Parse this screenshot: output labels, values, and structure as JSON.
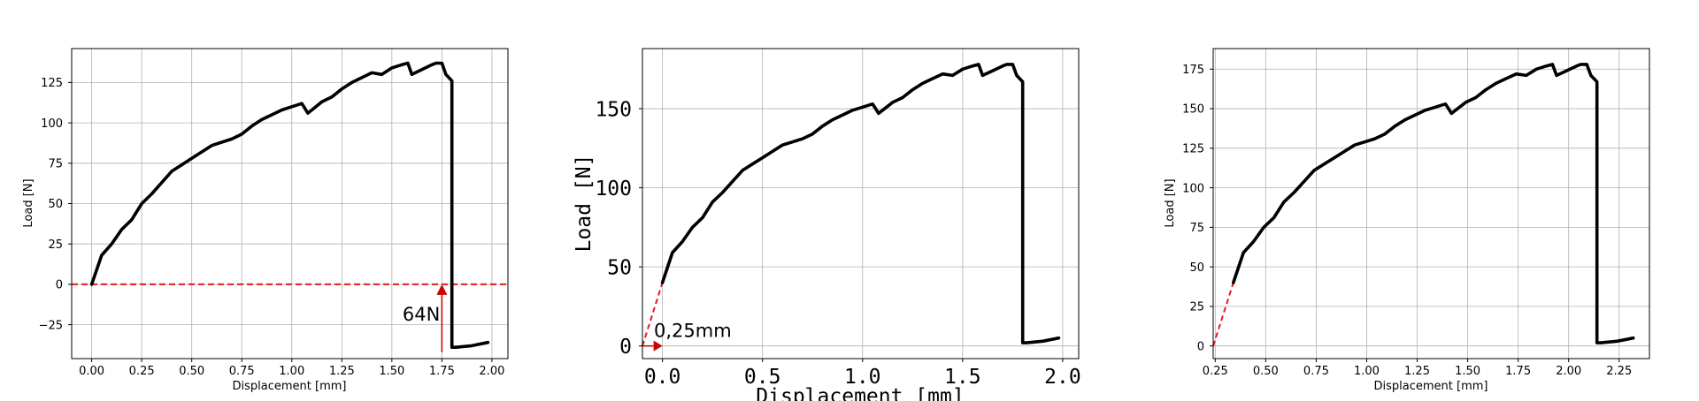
{
  "chart_data": [
    {
      "type": "line",
      "title": "",
      "xlabel": "Displacement [mm]",
      "ylabel": "Load [N]",
      "xlim": [
        -0.1,
        2.08
      ],
      "ylim": [
        -46,
        146
      ],
      "xticks": [
        "0.00",
        "0.25",
        "0.50",
        "0.75",
        "1.00",
        "1.25",
        "1.50",
        "1.75",
        "2.00"
      ],
      "yticks": [
        "−25",
        "0",
        "25",
        "50",
        "75",
        "100",
        "125"
      ],
      "grid": true,
      "series": [
        {
          "color": "#000000",
          "x": [
            0.0,
            0.05,
            0.1,
            0.15,
            0.2,
            0.25,
            0.3,
            0.35,
            0.4,
            0.45,
            0.5,
            0.55,
            0.6,
            0.65,
            0.7,
            0.75,
            0.8,
            0.85,
            0.9,
            0.95,
            1.0,
            1.05,
            1.08,
            1.1,
            1.15,
            1.2,
            1.25,
            1.3,
            1.35,
            1.4,
            1.45,
            1.5,
            1.55,
            1.58,
            1.6,
            1.65,
            1.7,
            1.72,
            1.75,
            1.77,
            1.8,
            1.8,
            1.82,
            1.9,
            1.98
          ],
          "y": [
            0,
            18,
            25,
            34,
            40,
            50,
            56,
            63,
            70,
            74,
            78,
            82,
            86,
            88,
            90,
            93,
            98,
            102,
            105,
            108,
            110,
            112,
            106,
            108,
            113,
            116,
            121,
            125,
            128,
            131,
            130,
            134,
            136,
            137,
            130,
            133,
            136,
            137,
            137,
            130,
            126,
            -39,
            -39,
            -38,
            -36
          ]
        }
      ],
      "reference_line": {
        "y": 0,
        "color": "#e41a1c",
        "style": "dashed"
      },
      "annotations": [
        {
          "text": "64N",
          "x": 1.75,
          "y_from": -42,
          "y_to": 0,
          "color": "#cc0000"
        }
      ]
    },
    {
      "type": "line",
      "title": "",
      "xlabel": "Displacement [mm]",
      "ylabel": "Load [N]",
      "xlim": [
        -0.1,
        2.08
      ],
      "ylim": [
        -8,
        188
      ],
      "xticks": [
        "0.0",
        "0.5",
        "1.0",
        "1.5",
        "2.0"
      ],
      "yticks": [
        "0",
        "50",
        "100",
        "150"
      ],
      "grid": true,
      "series": [
        {
          "color": "#000000",
          "x": [
            0.0,
            0.05,
            0.1,
            0.15,
            0.2,
            0.25,
            0.3,
            0.35,
            0.4,
            0.45,
            0.5,
            0.55,
            0.6,
            0.65,
            0.7,
            0.75,
            0.8,
            0.85,
            0.9,
            0.95,
            1.0,
            1.05,
            1.08,
            1.1,
            1.15,
            1.2,
            1.25,
            1.3,
            1.35,
            1.4,
            1.45,
            1.5,
            1.55,
            1.58,
            1.6,
            1.65,
            1.7,
            1.72,
            1.75,
            1.77,
            1.8,
            1.8,
            1.82,
            1.9,
            1.98
          ],
          "y": [
            40,
            59,
            66,
            75,
            81,
            91,
            97,
            104,
            111,
            115,
            119,
            123,
            127,
            129,
            131,
            134,
            139,
            143,
            146,
            149,
            151,
            153,
            147,
            149,
            154,
            157,
            162,
            166,
            169,
            172,
            171,
            175,
            177,
            178,
            171,
            174,
            177,
            178,
            178,
            171,
            167,
            2,
            2,
            3,
            5
          ]
        }
      ],
      "extrapolation": {
        "x": [
          -0.1,
          0.0
        ],
        "y": [
          0,
          40
        ],
        "color": "#e41a1c"
      },
      "annotations": [
        {
          "text": "0,25mm",
          "x_from": -0.1,
          "x_to": 0.0,
          "y": 0,
          "color": "#cc0000"
        }
      ]
    },
    {
      "type": "line",
      "title": "",
      "xlabel": "Displacement [mm]",
      "ylabel": "Load [N]",
      "xlim": [
        0.24,
        2.4
      ],
      "ylim": [
        -8,
        188
      ],
      "xticks": [
        "0.25",
        "0.50",
        "0.75",
        "1.00",
        "1.25",
        "1.50",
        "1.75",
        "2.00",
        "2.25"
      ],
      "yticks": [
        "0",
        "25",
        "50",
        "75",
        "100",
        "125",
        "150",
        "175"
      ],
      "grid": true,
      "series": [
        {
          "color": "#000000",
          "x": [
            0.34,
            0.39,
            0.44,
            0.49,
            0.54,
            0.59,
            0.64,
            0.69,
            0.74,
            0.79,
            0.84,
            0.89,
            0.94,
            0.99,
            1.04,
            1.09,
            1.14,
            1.19,
            1.24,
            1.29,
            1.34,
            1.39,
            1.42,
            1.44,
            1.49,
            1.54,
            1.59,
            1.64,
            1.69,
            1.74,
            1.79,
            1.84,
            1.89,
            1.92,
            1.94,
            1.99,
            2.04,
            2.06,
            2.09,
            2.11,
            2.14,
            2.14,
            2.16,
            2.24,
            2.32
          ],
          "y": [
            40,
            59,
            66,
            75,
            81,
            91,
            97,
            104,
            111,
            115,
            119,
            123,
            127,
            129,
            131,
            134,
            139,
            143,
            146,
            149,
            151,
            153,
            147,
            149,
            154,
            157,
            162,
            166,
            169,
            172,
            171,
            175,
            177,
            178,
            171,
            174,
            177,
            178,
            178,
            171,
            167,
            2,
            2,
            3,
            5
          ]
        }
      ],
      "extrapolation": {
        "x": [
          0.24,
          0.34
        ],
        "y": [
          0,
          40
        ],
        "color": "#e41a1c"
      }
    }
  ]
}
